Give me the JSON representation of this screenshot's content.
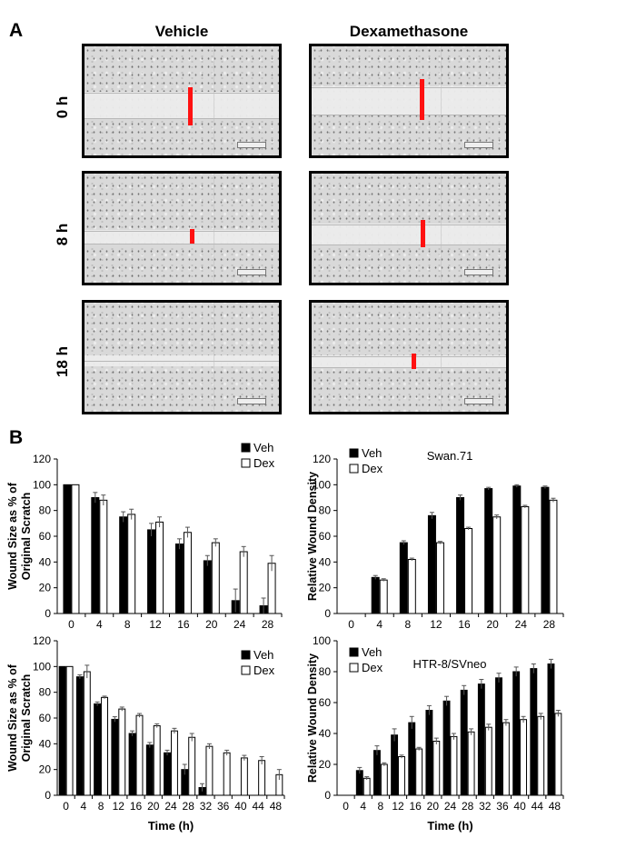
{
  "panel_a": {
    "letter": "A",
    "columns": [
      "Vehicle",
      "Dexamethasone"
    ],
    "rows": [
      "0 h",
      "8 h",
      "18 h"
    ],
    "marker_color": "#ff1111"
  },
  "panel_b": {
    "letter": "B"
  },
  "chart_data": [
    {
      "type": "bar",
      "title": "",
      "xlabel": "",
      "ylabel": "Wound Size as % of Original Scratch",
      "ylabel_lines": [
        "Wound Size as % of",
        "Original Scratch"
      ],
      "ylim": [
        0,
        120
      ],
      "yticks": [
        0,
        20,
        40,
        60,
        80,
        100,
        120
      ],
      "categories": [
        "0",
        "4",
        "8",
        "12",
        "16",
        "20",
        "24",
        "28"
      ],
      "legend": [
        "Veh",
        "Dex"
      ],
      "series": [
        {
          "name": "Veh",
          "color": "#000000",
          "values": [
            100,
            90,
            75,
            65,
            54,
            41,
            10,
            6
          ],
          "errors": [
            0,
            4,
            4,
            5,
            4,
            4,
            9,
            6
          ]
        },
        {
          "name": "Dex",
          "color": "#ffffff",
          "values": [
            100,
            88,
            77,
            71,
            63,
            55,
            48,
            39
          ],
          "errors": [
            0,
            4,
            4,
            4,
            4,
            3,
            4,
            6
          ]
        }
      ]
    },
    {
      "type": "bar",
      "title": "Swan.71",
      "xlabel": "",
      "ylabel": "Relative Wound Density",
      "ylim": [
        0,
        120
      ],
      "yticks": [
        0,
        20,
        40,
        60,
        80,
        100,
        120
      ],
      "categories": [
        "0",
        "4",
        "8",
        "12",
        "16",
        "20",
        "24",
        "28"
      ],
      "legend": [
        "Veh",
        "Dex"
      ],
      "series": [
        {
          "name": "Veh",
          "color": "#000000",
          "values": [
            0,
            28,
            55,
            76,
            90,
            97,
            99,
            98
          ],
          "errors": [
            0,
            1.5,
            1.5,
            2.5,
            2,
            1,
            1,
            1
          ]
        },
        {
          "name": "Dex",
          "color": "#ffffff",
          "values": [
            0,
            26,
            42,
            55,
            66,
            75,
            83,
            88
          ],
          "errors": [
            0,
            1,
            1,
            1,
            1,
            1.5,
            1,
            1.5
          ]
        }
      ]
    },
    {
      "type": "bar",
      "title": "",
      "xlabel": "Time (h)",
      "ylabel": "Wound Size as % of Original Scratch",
      "ylabel_lines": [
        "Wound Size as % of",
        "Original Scratch"
      ],
      "ylim": [
        0,
        120
      ],
      "yticks": [
        0,
        20,
        40,
        60,
        80,
        100,
        120
      ],
      "categories": [
        "0",
        "4",
        "8",
        "12",
        "16",
        "20",
        "24",
        "28",
        "32",
        "36",
        "40",
        "44",
        "48"
      ],
      "legend": [
        "Veh",
        "Dex"
      ],
      "series": [
        {
          "name": "Veh",
          "color": "#000000",
          "values": [
            100,
            92,
            71,
            59,
            48,
            39,
            33,
            20,
            6,
            null,
            null,
            null,
            null
          ],
          "errors": [
            0,
            1.5,
            1.5,
            2,
            2,
            2,
            2,
            4,
            3,
            0,
            0,
            0,
            0
          ]
        },
        {
          "name": "Dex",
          "color": "#ffffff",
          "values": [
            100,
            96,
            76,
            67,
            62,
            54,
            50,
            45,
            38,
            33,
            29,
            27,
            16
          ],
          "errors": [
            0,
            5,
            1,
            1.5,
            1.5,
            1.5,
            2,
            3,
            2,
            2,
            2,
            3,
            4
          ]
        }
      ]
    },
    {
      "type": "bar",
      "title": "HTR-8/SVneo",
      "xlabel": "Time (h)",
      "ylabel": "Relative Wound Density",
      "ylim": [
        0,
        100
      ],
      "yticks": [
        0,
        20,
        40,
        60,
        80,
        100
      ],
      "categories": [
        "0",
        "4",
        "8",
        "12",
        "16",
        "20",
        "24",
        "28",
        "32",
        "36",
        "40",
        "44",
        "48"
      ],
      "legend": [
        "Veh",
        "Dex"
      ],
      "series": [
        {
          "name": "Veh",
          "color": "#000000",
          "values": [
            0,
            16,
            29,
            39,
            47,
            55,
            61,
            68,
            72,
            76,
            80,
            82,
            85
          ],
          "errors": [
            0,
            2,
            3,
            4,
            4,
            3,
            3,
            3,
            3,
            3,
            3,
            3,
            3
          ]
        },
        {
          "name": "Dex",
          "color": "#ffffff",
          "values": [
            0,
            11,
            20,
            25,
            30,
            35,
            38,
            41,
            44,
            47,
            49,
            51,
            53
          ],
          "errors": [
            0,
            1,
            1,
            1,
            1,
            2,
            2,
            2,
            2,
            2,
            2,
            2,
            2
          ]
        }
      ]
    }
  ]
}
